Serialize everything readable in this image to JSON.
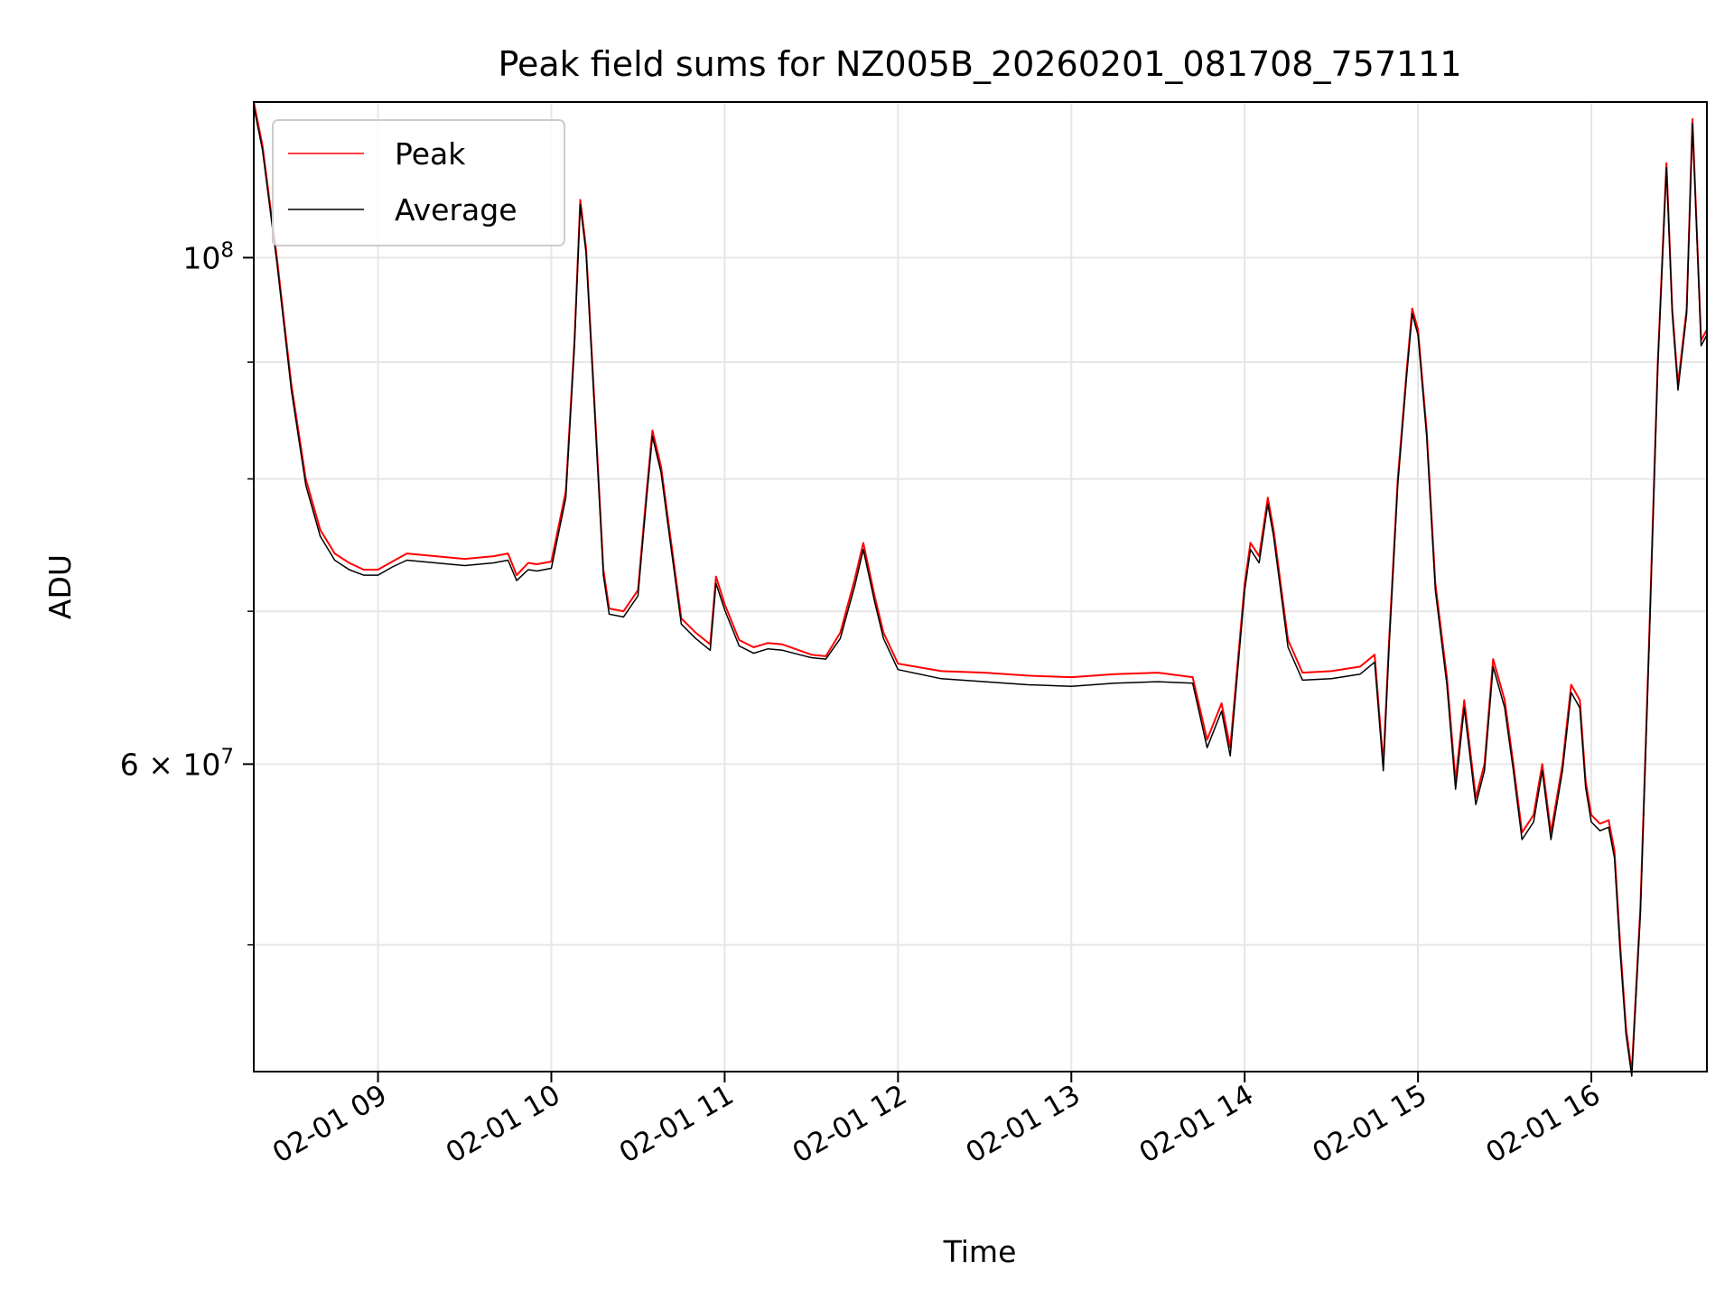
{
  "chart_data": {
    "type": "line",
    "title": "Peak field sums for NZ005B_20260201_081708_757111",
    "xlabel": "Time",
    "ylabel": "ADU",
    "y_scale": "log",
    "ylim": [
      44000000,
      117000000
    ],
    "xlim": [
      "2026-02-01 08:17",
      "2026-02-01 16:40"
    ],
    "grid": true,
    "legend_position": "upper left",
    "x_ticks": [
      {
        "t": "2026-02-01 09:00",
        "label": "02-01 09"
      },
      {
        "t": "2026-02-01 10:00",
        "label": "02-01 10"
      },
      {
        "t": "2026-02-01 11:00",
        "label": "02-01 11"
      },
      {
        "t": "2026-02-01 12:00",
        "label": "02-01 12"
      },
      {
        "t": "2026-02-01 13:00",
        "label": "02-01 13"
      },
      {
        "t": "2026-02-01 14:00",
        "label": "02-01 14"
      },
      {
        "t": "2026-02-01 15:00",
        "label": "02-01 15"
      },
      {
        "t": "2026-02-01 16:00",
        "label": "02-01 16"
      }
    ],
    "y_major_ticks": [
      {
        "value": 60000000,
        "base": "6",
        "times": "×",
        "exp_base": "10",
        "exp": "7"
      },
      {
        "value": 100000000,
        "base": "",
        "times": "",
        "exp_base": "10",
        "exp": "8"
      }
    ],
    "y_minor_ticks": [
      50000000,
      70000000,
      80000000,
      90000000
    ],
    "series": [
      {
        "name": "Peak",
        "color": "#ff0000",
        "x": [
          "2026-02-01 08:17",
          "2026-02-01 08:20",
          "2026-02-01 08:25",
          "2026-02-01 08:30",
          "2026-02-01 08:35",
          "2026-02-01 08:40",
          "2026-02-01 08:45",
          "2026-02-01 08:50",
          "2026-02-01 08:55",
          "2026-02-01 09:00",
          "2026-02-01 09:05",
          "2026-02-01 09:10",
          "2026-02-01 09:20",
          "2026-02-01 09:30",
          "2026-02-01 09:40",
          "2026-02-01 09:45",
          "2026-02-01 09:48",
          "2026-02-01 09:52",
          "2026-02-01 09:55",
          "2026-02-01 10:00",
          "2026-02-01 10:05",
          "2026-02-01 10:08",
          "2026-02-01 10:10",
          "2026-02-01 10:12",
          "2026-02-01 10:15",
          "2026-02-01 10:18",
          "2026-02-01 10:20",
          "2026-02-01 10:25",
          "2026-02-01 10:30",
          "2026-02-01 10:33",
          "2026-02-01 10:35",
          "2026-02-01 10:38",
          "2026-02-01 10:40",
          "2026-02-01 10:45",
          "2026-02-01 10:50",
          "2026-02-01 10:55",
          "2026-02-01 10:57",
          "2026-02-01 11:00",
          "2026-02-01 11:05",
          "2026-02-01 11:10",
          "2026-02-01 11:15",
          "2026-02-01 11:20",
          "2026-02-01 11:30",
          "2026-02-01 11:35",
          "2026-02-01 11:40",
          "2026-02-01 11:45",
          "2026-02-01 11:48",
          "2026-02-01 11:52",
          "2026-02-01 11:55",
          "2026-02-01 12:00",
          "2026-02-01 12:15",
          "2026-02-01 12:30",
          "2026-02-01 12:45",
          "2026-02-01 13:00",
          "2026-02-01 13:15",
          "2026-02-01 13:30",
          "2026-02-01 13:42",
          "2026-02-01 13:47",
          "2026-02-01 13:52",
          "2026-02-01 13:55",
          "2026-02-01 14:00",
          "2026-02-01 14:02",
          "2026-02-01 14:05",
          "2026-02-01 14:08",
          "2026-02-01 14:10",
          "2026-02-01 14:15",
          "2026-02-01 14:20",
          "2026-02-01 14:30",
          "2026-02-01 14:40",
          "2026-02-01 14:45",
          "2026-02-01 14:48",
          "2026-02-01 14:50",
          "2026-02-01 14:53",
          "2026-02-01 14:56",
          "2026-02-01 14:58",
          "2026-02-01 15:00",
          "2026-02-01 15:03",
          "2026-02-01 15:06",
          "2026-02-01 15:10",
          "2026-02-01 15:13",
          "2026-02-01 15:16",
          "2026-02-01 15:20",
          "2026-02-01 15:23",
          "2026-02-01 15:26",
          "2026-02-01 15:30",
          "2026-02-01 15:33",
          "2026-02-01 15:36",
          "2026-02-01 15:40",
          "2026-02-01 15:43",
          "2026-02-01 15:46",
          "2026-02-01 15:50",
          "2026-02-01 15:53",
          "2026-02-01 15:56",
          "2026-02-01 15:58",
          "2026-02-01 16:00",
          "2026-02-01 16:03",
          "2026-02-01 16:06",
          "2026-02-01 16:08",
          "2026-02-01 16:10",
          "2026-02-01 16:12",
          "2026-02-01 16:14",
          "2026-02-01 16:17",
          "2026-02-01 16:20",
          "2026-02-01 16:23",
          "2026-02-01 16:26",
          "2026-02-01 16:28",
          "2026-02-01 16:30",
          "2026-02-01 16:33",
          "2026-02-01 16:35",
          "2026-02-01 16:38",
          "2026-02-01 16:40"
        ],
        "values": [
          117000000,
          112000000,
          100000000,
          88000000,
          80000000,
          76000000,
          74200000,
          73500000,
          73000000,
          73000000,
          73600000,
          74200000,
          74000000,
          73800000,
          74000000,
          74200000,
          72600000,
          73500000,
          73400000,
          73600000,
          79000000,
          92000000,
          106000000,
          101000000,
          86000000,
          73000000,
          70200000,
          70000000,
          71500000,
          79000000,
          84000000,
          81000000,
          77500000,
          69500000,
          68500000,
          67700000,
          72500000,
          70500000,
          68000000,
          67500000,
          67800000,
          67700000,
          67000000,
          66900000,
          68500000,
          72300000,
          75000000,
          71000000,
          68500000,
          66400000,
          65900000,
          65800000,
          65600000,
          65500000,
          65700000,
          65800000,
          65500000,
          61500000,
          63800000,
          61000000,
          72000000,
          75000000,
          74000000,
          78500000,
          76000000,
          68000000,
          65800000,
          65900000,
          66200000,
          67000000,
          60000000,
          68000000,
          80000000,
          89000000,
          95000000,
          93000000,
          84000000,
          72000000,
          65500000,
          59000000,
          64000000,
          58000000,
          60000000,
          66700000,
          64000000,
          60000000,
          56000000,
          57000000,
          60000000,
          56000000,
          60000000,
          65000000,
          64000000,
          59000000,
          57000000,
          56500000,
          56700000,
          55000000,
          50000000,
          46000000,
          44000000,
          52000000,
          68000000,
          90000000,
          110000000,
          95000000,
          88000000,
          95000000,
          115000000,
          92000000,
          93000000
        ]
      },
      {
        "name": "Average",
        "color": "#000000",
        "x": [
          "2026-02-01 08:17",
          "2026-02-01 08:20",
          "2026-02-01 08:25",
          "2026-02-01 08:30",
          "2026-02-01 08:35",
          "2026-02-01 08:40",
          "2026-02-01 08:45",
          "2026-02-01 08:50",
          "2026-02-01 08:55",
          "2026-02-01 09:00",
          "2026-02-01 09:05",
          "2026-02-01 09:10",
          "2026-02-01 09:20",
          "2026-02-01 09:30",
          "2026-02-01 09:40",
          "2026-02-01 09:45",
          "2026-02-01 09:48",
          "2026-02-01 09:52",
          "2026-02-01 09:55",
          "2026-02-01 10:00",
          "2026-02-01 10:05",
          "2026-02-01 10:08",
          "2026-02-01 10:10",
          "2026-02-01 10:12",
          "2026-02-01 10:15",
          "2026-02-01 10:18",
          "2026-02-01 10:20",
          "2026-02-01 10:25",
          "2026-02-01 10:30",
          "2026-02-01 10:33",
          "2026-02-01 10:35",
          "2026-02-01 10:38",
          "2026-02-01 10:40",
          "2026-02-01 10:45",
          "2026-02-01 10:50",
          "2026-02-01 10:55",
          "2026-02-01 10:57",
          "2026-02-01 11:00",
          "2026-02-01 11:05",
          "2026-02-01 11:10",
          "2026-02-01 11:15",
          "2026-02-01 11:20",
          "2026-02-01 11:30",
          "2026-02-01 11:35",
          "2026-02-01 11:40",
          "2026-02-01 11:45",
          "2026-02-01 11:48",
          "2026-02-01 11:52",
          "2026-02-01 11:55",
          "2026-02-01 12:00",
          "2026-02-01 12:15",
          "2026-02-01 12:30",
          "2026-02-01 12:45",
          "2026-02-01 13:00",
          "2026-02-01 13:15",
          "2026-02-01 13:30",
          "2026-02-01 13:42",
          "2026-02-01 13:47",
          "2026-02-01 13:52",
          "2026-02-01 13:55",
          "2026-02-01 14:00",
          "2026-02-01 14:02",
          "2026-02-01 14:05",
          "2026-02-01 14:08",
          "2026-02-01 14:10",
          "2026-02-01 14:15",
          "2026-02-01 14:20",
          "2026-02-01 14:30",
          "2026-02-01 14:40",
          "2026-02-01 14:45",
          "2026-02-01 14:48",
          "2026-02-01 14:50",
          "2026-02-01 14:53",
          "2026-02-01 14:56",
          "2026-02-01 14:58",
          "2026-02-01 15:00",
          "2026-02-01 15:03",
          "2026-02-01 15:06",
          "2026-02-01 15:10",
          "2026-02-01 15:13",
          "2026-02-01 15:16",
          "2026-02-01 15:20",
          "2026-02-01 15:23",
          "2026-02-01 15:26",
          "2026-02-01 15:30",
          "2026-02-01 15:33",
          "2026-02-01 15:36",
          "2026-02-01 15:40",
          "2026-02-01 15:43",
          "2026-02-01 15:46",
          "2026-02-01 15:50",
          "2026-02-01 15:53",
          "2026-02-01 15:56",
          "2026-02-01 15:58",
          "2026-02-01 16:00",
          "2026-02-01 16:03",
          "2026-02-01 16:06",
          "2026-02-01 16:08",
          "2026-02-01 16:10",
          "2026-02-01 16:12",
          "2026-02-01 16:14",
          "2026-02-01 16:17",
          "2026-02-01 16:20",
          "2026-02-01 16:23",
          "2026-02-01 16:26",
          "2026-02-01 16:28",
          "2026-02-01 16:30",
          "2026-02-01 16:33",
          "2026-02-01 16:35",
          "2026-02-01 16:38",
          "2026-02-01 16:40"
        ],
        "values": [
          116500000,
          111500000,
          99500000,
          87500000,
          79500000,
          75500000,
          73700000,
          73000000,
          72600000,
          72600000,
          73200000,
          73700000,
          73500000,
          73300000,
          73500000,
          73700000,
          72200000,
          73000000,
          72900000,
          73100000,
          78500000,
          91500000,
          105500000,
          100500000,
          85500000,
          72600000,
          69800000,
          69600000,
          71100000,
          78500000,
          83500000,
          80500000,
          77000000,
          69100000,
          68100000,
          67300000,
          72000000,
          70100000,
          67600000,
          67100000,
          67400000,
          67300000,
          66800000,
          66700000,
          68100000,
          71800000,
          74500000,
          70600000,
          68100000,
          66000000,
          65400000,
          65200000,
          65000000,
          64900000,
          65100000,
          65200000,
          65100000,
          61000000,
          63300000,
          60500000,
          71500000,
          74500000,
          73500000,
          78000000,
          75500000,
          67500000,
          65300000,
          65400000,
          65700000,
          66500000,
          59600000,
          67500000,
          79500000,
          88500000,
          94500000,
          92500000,
          83500000,
          71500000,
          65000000,
          58500000,
          63500000,
          57600000,
          59600000,
          66200000,
          63500000,
          59600000,
          55600000,
          56600000,
          59600000,
          55600000,
          59600000,
          64500000,
          63500000,
          58600000,
          56600000,
          56100000,
          56300000,
          54600000,
          49600000,
          45700000,
          43800000,
          51600000,
          67500000,
          89500000,
          109500000,
          94500000,
          87500000,
          94500000,
          114500000,
          91500000,
          92500000
        ]
      }
    ]
  }
}
